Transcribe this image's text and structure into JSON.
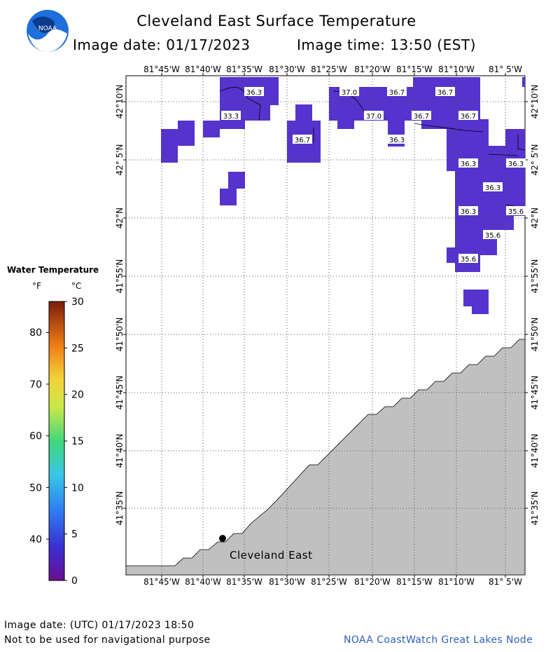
{
  "header": {
    "title": "Cleveland East Surface Temperature",
    "image_date": "Image date: 01/17/2023",
    "image_time": "Image time: 13:50 (EST)",
    "logo_text": "NOAA"
  },
  "map": {
    "lon_ticks": [
      "81°45'W",
      "81°40'W",
      "81°35'W",
      "81°30'W",
      "81°25'W",
      "81°20'W",
      "81°15'W",
      "81°10'W",
      "81° 5'W"
    ],
    "lat_ticks": [
      "42°10'N",
      "42° 5'N",
      "42°N",
      "41°55'N",
      "41°50'N",
      "41°45'N",
      "41°40'N",
      "41°35'N"
    ],
    "station_label": "Cleveland East",
    "temperature_labels": [
      "36.3",
      "33.3",
      "37.0",
      "36.7",
      "36.7",
      "37.0",
      "36.7",
      "36.7",
      "36.7",
      "36.3",
      "36.3",
      "36.3",
      "36.3",
      "36.3",
      "35.6",
      "35.6",
      "35.6"
    ],
    "colors": {
      "water_cold": "#5533cc",
      "land": "#c0c0c0",
      "grid": "#555555"
    }
  },
  "legend": {
    "title": "Water Temperature",
    "unit_f": "°F",
    "unit_c": "°C",
    "f_ticks": [
      "80",
      "70",
      "60",
      "50",
      "40"
    ],
    "c_ticks": [
      "30",
      "25",
      "20",
      "15",
      "10",
      "5",
      "0"
    ]
  },
  "footer": {
    "utc_date": "Image date: (UTC) 01/17/2023  18:50",
    "disclaimer": "Not to be used for navigational purpose",
    "credit": "NOAA CoastWatch Great Lakes Node"
  }
}
